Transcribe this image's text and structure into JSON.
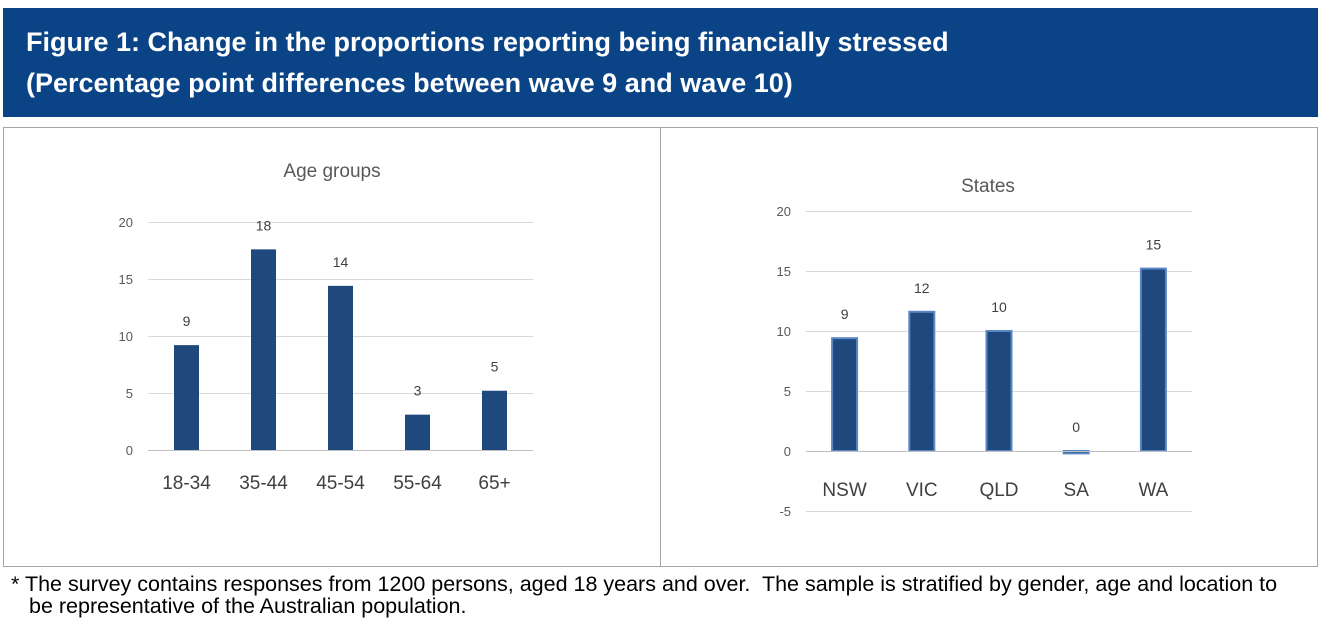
{
  "header": {
    "title": "Figure 1: Change in the proportions reporting being financially stressed",
    "subtitle": "(Percentage point differences between wave 9 and wave 10)"
  },
  "footnote": {
    "line1": "* The survey contains responses from 1200 persons, aged 18 years and over.  The sample is stratified by gender, age and location to",
    "line2": "be representative of the Australian population."
  },
  "colors": {
    "header_bg": "#0b4486",
    "bar": "#1f497d",
    "bar_outline": "#5a86c5"
  },
  "chart_data": [
    {
      "type": "bar",
      "title": "Age groups",
      "categories": [
        "18-34",
        "35-44",
        "45-54",
        "55-64",
        "65+"
      ],
      "values": [
        9.2,
        17.6,
        14.4,
        3.1,
        5.2
      ],
      "data_labels": [
        "9",
        "18",
        "14",
        "3",
        "5"
      ],
      "ylim": [
        0,
        20
      ],
      "yticks": [
        0,
        5,
        10,
        15,
        20
      ],
      "grid": true
    },
    {
      "type": "bar",
      "title": "States",
      "categories": [
        "NSW",
        "VIC",
        "QLD",
        "SA",
        "WA"
      ],
      "values": [
        9.4,
        11.6,
        10.0,
        -0.2,
        15.2
      ],
      "data_labels": [
        "9",
        "12",
        "10",
        "0",
        "15"
      ],
      "ylim": [
        -5,
        20
      ],
      "yticks": [
        -5,
        0,
        5,
        10,
        15,
        20
      ],
      "grid": true
    }
  ]
}
